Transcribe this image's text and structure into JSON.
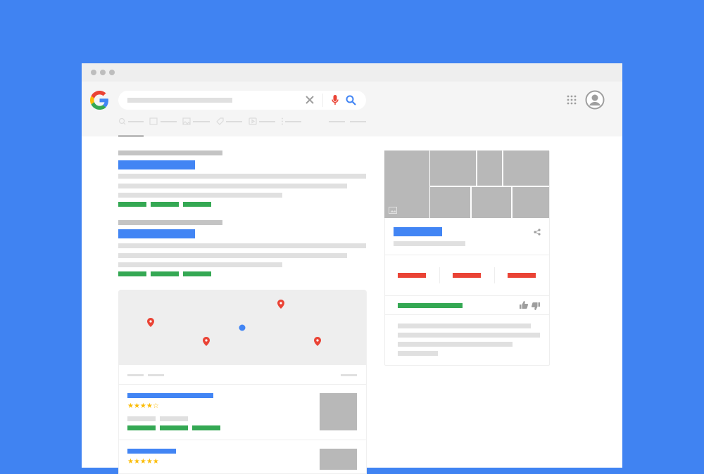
{
  "theme": {
    "background": "#4083f2",
    "blue": "#4285f4",
    "green": "#34a853",
    "red": "#ea4335",
    "yellow": "#fbbc05",
    "placeholder": "#e0e0e0"
  },
  "window": {
    "controls": [
      "dot",
      "dot",
      "dot"
    ]
  },
  "header": {
    "logo": "google-g-logo",
    "search": {
      "clear_icon": "close-icon",
      "voice_icon": "microphone-icon",
      "search_icon": "search-icon"
    },
    "tabs": [
      "search-icon",
      "news-icon",
      "image-icon",
      "tag-icon",
      "video-icon",
      "more-vertical-icon"
    ],
    "apps_icon": "apps-grid-icon",
    "account_icon": "avatar-icon"
  },
  "map": {
    "pins": 4,
    "current_location": "blue-dot"
  },
  "listings": [
    {
      "rating": 4,
      "max_rating": 5
    },
    {
      "rating": 5,
      "max_rating": 5
    }
  ],
  "knowledge_panel": {
    "share_icon": "share-icon",
    "feedback_icons": [
      "thumbs-up-icon",
      "thumbs-down-icon"
    ]
  }
}
